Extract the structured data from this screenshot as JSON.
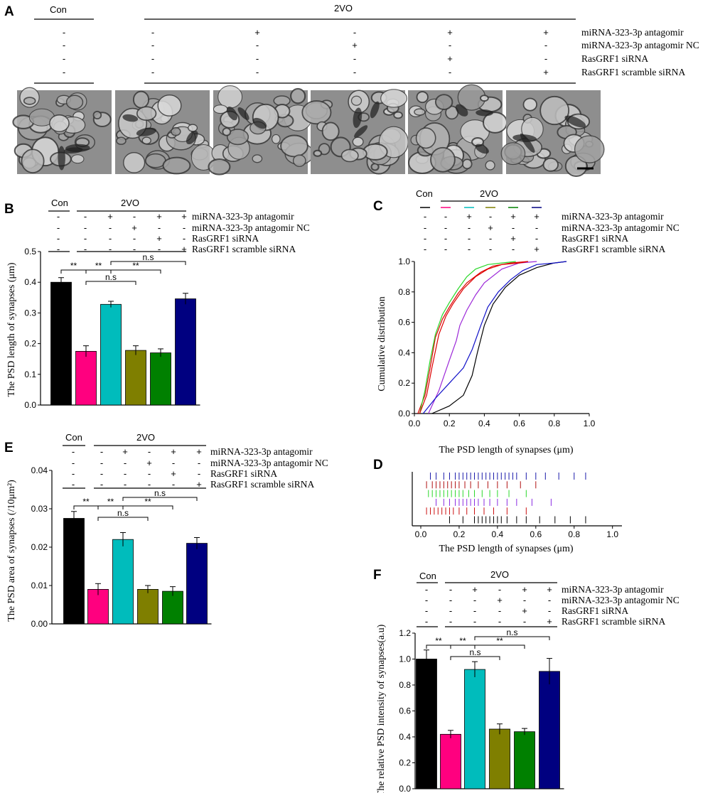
{
  "figure": {
    "panel_letters": [
      "A",
      "B",
      "C",
      "D",
      "E",
      "F"
    ],
    "group_con": "Con",
    "group_2vo": "2VO",
    "conditions": [
      "miRNA-323-3p antagomir",
      "miRNA-323-3p antagomir NC",
      "RasGRF1 siRNA",
      "RasGRF1 scramble siRNA"
    ],
    "condition_matrix": [
      [
        "-",
        "-",
        "+",
        "-",
        "+",
        "+"
      ],
      [
        "-",
        "-",
        "-",
        "+",
        "-",
        "-"
      ],
      [
        "-",
        "-",
        "-",
        "-",
        "+",
        "-"
      ],
      [
        "-",
        "-",
        "-",
        "-",
        "-",
        "+"
      ]
    ],
    "colors": [
      "#000000",
      "#ff007f",
      "#00bcbc",
      "#7f7f00",
      "#008000",
      "#000080"
    ],
    "sig": {
      "ss": "**",
      "ns": "n.s"
    }
  },
  "chart_data": [
    {
      "panel": "B",
      "type": "bar",
      "ylabel": "The PSD length of synapses (μm)",
      "ylim": [
        0,
        0.5
      ],
      "yticks": [
        "0.0",
        "0.1",
        "0.2",
        "0.3",
        "0.4",
        "0.5"
      ],
      "values": [
        0.4,
        0.175,
        0.328,
        0.178,
        0.17,
        0.346
      ],
      "errors": [
        0.015,
        0.018,
        0.01,
        0.015,
        0.013,
        0.018
      ]
    },
    {
      "panel": "C",
      "type": "line",
      "xlabel": "The PSD length of synapses (μm)",
      "ylabel": "Cumulative distribution",
      "xlim": [
        0,
        1.0
      ],
      "ylim": [
        0,
        1.0
      ],
      "xticks": [
        "0.0",
        "0.2",
        "0.4",
        "0.6",
        "0.8",
        "1.0"
      ],
      "yticks": [
        "0.0",
        "0.2",
        "0.4",
        "0.6",
        "0.8",
        "1.0"
      ],
      "series": [
        {
          "x": [
            0.1,
            0.2,
            0.28,
            0.33,
            0.36,
            0.4,
            0.45,
            0.52,
            0.6,
            0.7,
            0.8,
            0.87
          ],
          "y": [
            0.0,
            0.05,
            0.12,
            0.25,
            0.4,
            0.58,
            0.72,
            0.83,
            0.91,
            0.96,
            0.99,
            1.0
          ]
        },
        {
          "x": [
            0.02,
            0.06,
            0.09,
            0.12,
            0.16,
            0.2,
            0.25,
            0.3,
            0.38,
            0.45,
            0.55,
            0.65
          ],
          "y": [
            0.0,
            0.12,
            0.3,
            0.5,
            0.62,
            0.7,
            0.79,
            0.86,
            0.93,
            0.97,
            0.99,
            1.0
          ]
        },
        {
          "x": [
            0.08,
            0.14,
            0.2,
            0.24,
            0.26,
            0.3,
            0.35,
            0.4,
            0.5,
            0.6,
            0.7
          ],
          "y": [
            0.0,
            0.15,
            0.35,
            0.48,
            0.58,
            0.68,
            0.78,
            0.86,
            0.95,
            0.99,
            1.0
          ]
        },
        {
          "x": [
            0.03,
            0.06,
            0.09,
            0.12,
            0.16,
            0.2,
            0.25,
            0.3,
            0.35,
            0.42,
            0.5,
            0.58
          ],
          "y": [
            0.0,
            0.15,
            0.35,
            0.52,
            0.65,
            0.73,
            0.82,
            0.9,
            0.95,
            0.98,
            0.99,
            1.0
          ]
        },
        {
          "x": [
            0.03,
            0.07,
            0.1,
            0.14,
            0.18,
            0.22,
            0.28,
            0.35,
            0.42,
            0.5,
            0.6,
            0.65
          ],
          "y": [
            0.0,
            0.12,
            0.3,
            0.52,
            0.64,
            0.72,
            0.82,
            0.9,
            0.95,
            0.98,
            0.99,
            1.0
          ]
        },
        {
          "x": [
            0.05,
            0.12,
            0.2,
            0.28,
            0.33,
            0.38,
            0.42,
            0.48,
            0.55,
            0.62,
            0.7,
            0.8,
            0.87
          ],
          "y": [
            0.0,
            0.1,
            0.2,
            0.3,
            0.42,
            0.58,
            0.7,
            0.8,
            0.88,
            0.94,
            0.98,
            0.99,
            1.0
          ]
        }
      ]
    },
    {
      "panel": "D",
      "type": "scatter",
      "xlabel": "The PSD length of synapses (μm)",
      "xlim": [
        0,
        1.0
      ],
      "xticks": [
        "0.0",
        "0.2",
        "0.4",
        "0.6",
        "0.8",
        "1.0"
      ],
      "rows": [
        {
          "color_index": 5,
          "x": [
            0.05,
            0.08,
            0.12,
            0.15,
            0.18,
            0.2,
            0.22,
            0.24,
            0.26,
            0.28,
            0.3,
            0.32,
            0.34,
            0.36,
            0.38,
            0.4,
            0.42,
            0.44,
            0.46,
            0.48,
            0.5,
            0.55,
            0.6,
            0.65,
            0.72,
            0.8,
            0.86
          ]
        },
        {
          "color_index": 1,
          "x": [
            0.03,
            0.06,
            0.08,
            0.1,
            0.12,
            0.14,
            0.16,
            0.18,
            0.2,
            0.23,
            0.26,
            0.3,
            0.35,
            0.4,
            0.45,
            0.52,
            0.6
          ]
        },
        {
          "color_index": 4,
          "x": [
            0.04,
            0.06,
            0.08,
            0.1,
            0.12,
            0.14,
            0.16,
            0.18,
            0.2,
            0.22,
            0.25,
            0.28,
            0.32,
            0.36,
            0.4,
            0.46,
            0.55
          ]
        },
        {
          "color_index": 2,
          "x": [
            0.08,
            0.12,
            0.15,
            0.18,
            0.2,
            0.22,
            0.24,
            0.26,
            0.28,
            0.3,
            0.33,
            0.36,
            0.4,
            0.45,
            0.5,
            0.58,
            0.68
          ]
        },
        {
          "color_index": 1,
          "x": [
            0.03,
            0.05,
            0.07,
            0.09,
            0.11,
            0.13,
            0.15,
            0.17,
            0.2,
            0.24,
            0.28,
            0.33,
            0.38,
            0.45,
            0.55
          ]
        },
        {
          "color_index": 0,
          "x": [
            0.15,
            0.22,
            0.28,
            0.3,
            0.32,
            0.34,
            0.36,
            0.38,
            0.4,
            0.42,
            0.45,
            0.5,
            0.55,
            0.62,
            0.7,
            0.78,
            0.86
          ]
        }
      ]
    },
    {
      "panel": "E",
      "type": "bar",
      "ylabel": "The PSD area of synapses (/10μm²)",
      "ylim": [
        0,
        0.04
      ],
      "yticks": [
        "0.00",
        "0.01",
        "0.02",
        "0.03",
        "0.04"
      ],
      "values": [
        0.0275,
        0.009,
        0.022,
        0.009,
        0.0085,
        0.021
      ],
      "errors": [
        0.0018,
        0.0015,
        0.0018,
        0.001,
        0.0012,
        0.0015
      ]
    },
    {
      "panel": "F",
      "type": "bar",
      "ylabel": "The relative PSD intensity of synapses(a.u)",
      "ylim": [
        0,
        1.2
      ],
      "yticks": [
        "0.0",
        "0.2",
        "0.4",
        "0.6",
        "0.8",
        "1.0",
        "1.2"
      ],
      "values": [
        1.0,
        0.42,
        0.92,
        0.46,
        0.44,
        0.905
      ],
      "errors": [
        0.07,
        0.03,
        0.06,
        0.04,
        0.025,
        0.1
      ]
    }
  ]
}
